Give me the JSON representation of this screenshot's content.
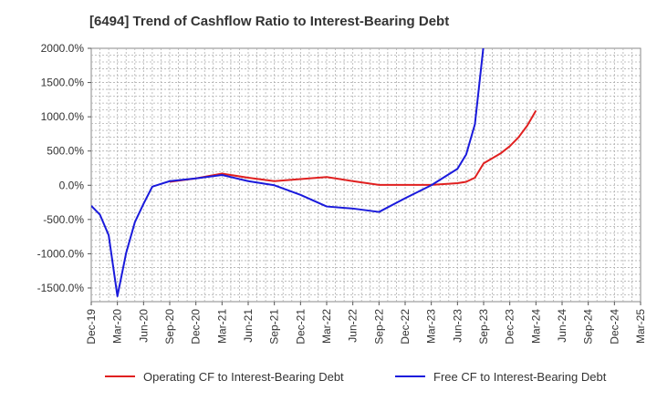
{
  "chart_data": {
    "type": "line",
    "title": "[6494]  Trend of Cashflow Ratio to Interest-Bearing Debt",
    "xlabel": "",
    "ylabel": "",
    "ylim": [
      -1700,
      2000
    ],
    "yticks": [
      "2000.0%",
      "1500.0%",
      "1000.0%",
      "500.0%",
      "0.0%",
      "-500.0%",
      "-1000.0%",
      "-1500.0%"
    ],
    "ytick_values": [
      2000,
      1500,
      1000,
      500,
      0,
      -500,
      -1000,
      -1500
    ],
    "xticks": [
      "Dec-19",
      "Mar-20",
      "Jun-20",
      "Sep-20",
      "Dec-20",
      "Mar-21",
      "Jun-21",
      "Sep-21",
      "Dec-21",
      "Mar-22",
      "Jun-22",
      "Sep-22",
      "Dec-22",
      "Mar-23",
      "Jun-23",
      "Sep-23",
      "Dec-23",
      "Mar-24",
      "Jun-24",
      "Sep-24",
      "Dec-24",
      "Mar-25"
    ],
    "grid": true,
    "legend_position": "bottom",
    "series": [
      {
        "name": "Operating CF to Interest-Bearing Debt",
        "color": "#e02020",
        "points": [
          {
            "x": "Sep-20",
            "y": 50
          },
          {
            "x": "Dec-20",
            "y": 100
          },
          {
            "x": "Mar-21",
            "y": 170
          },
          {
            "x": "Jun-21",
            "y": 110
          },
          {
            "x": "Sep-21",
            "y": 60
          },
          {
            "x": "Dec-21",
            "y": 90
          },
          {
            "x": "Mar-22",
            "y": 120
          },
          {
            "x": "Jun-22",
            "y": 60
          },
          {
            "x": "Sep-22",
            "y": 5
          },
          {
            "x": "Dec-22",
            "y": 5
          },
          {
            "x": "Mar-23",
            "y": 5
          },
          {
            "x": "Jun-23",
            "y": 30
          },
          {
            "x": "Jul-23",
            "y": 50
          },
          {
            "x": "Aug-23",
            "y": 110
          },
          {
            "x": "Sep-23",
            "y": 320
          },
          {
            "x": "Nov-23",
            "y": 470
          },
          {
            "x": "Dec-23",
            "y": 570
          },
          {
            "x": "Jan-24",
            "y": 700
          },
          {
            "x": "Feb-24",
            "y": 870
          },
          {
            "x": "Mar-24",
            "y": 1090
          }
        ]
      },
      {
        "name": "Free CF to Interest-Bearing Debt",
        "color": "#1a1adc",
        "points": [
          {
            "x": "Dec-19",
            "y": -300
          },
          {
            "x": "Jan-20",
            "y": -430
          },
          {
            "x": "Feb-20",
            "y": -730
          },
          {
            "x": "Mar-20",
            "y": -1620
          },
          {
            "x": "Apr-20",
            "y": -990
          },
          {
            "x": "May-20",
            "y": -540
          },
          {
            "x": "Jun-20",
            "y": -270
          },
          {
            "x": "Jul-20",
            "y": -20
          },
          {
            "x": "Sep-20",
            "y": 60
          },
          {
            "x": "Dec-20",
            "y": 100
          },
          {
            "x": "Mar-21",
            "y": 150
          },
          {
            "x": "Jun-21",
            "y": 60
          },
          {
            "x": "Sep-21",
            "y": 0
          },
          {
            "x": "Dec-21",
            "y": -140
          },
          {
            "x": "Mar-22",
            "y": -310
          },
          {
            "x": "Jun-22",
            "y": -340
          },
          {
            "x": "Sep-22",
            "y": -390
          },
          {
            "x": "Dec-22",
            "y": -190
          },
          {
            "x": "Mar-23",
            "y": 0
          },
          {
            "x": "Jun-23",
            "y": 240
          },
          {
            "x": "Jul-23",
            "y": 450
          },
          {
            "x": "Aug-23",
            "y": 890
          },
          {
            "x": "Sep-23",
            "y": 2050
          }
        ]
      }
    ]
  }
}
